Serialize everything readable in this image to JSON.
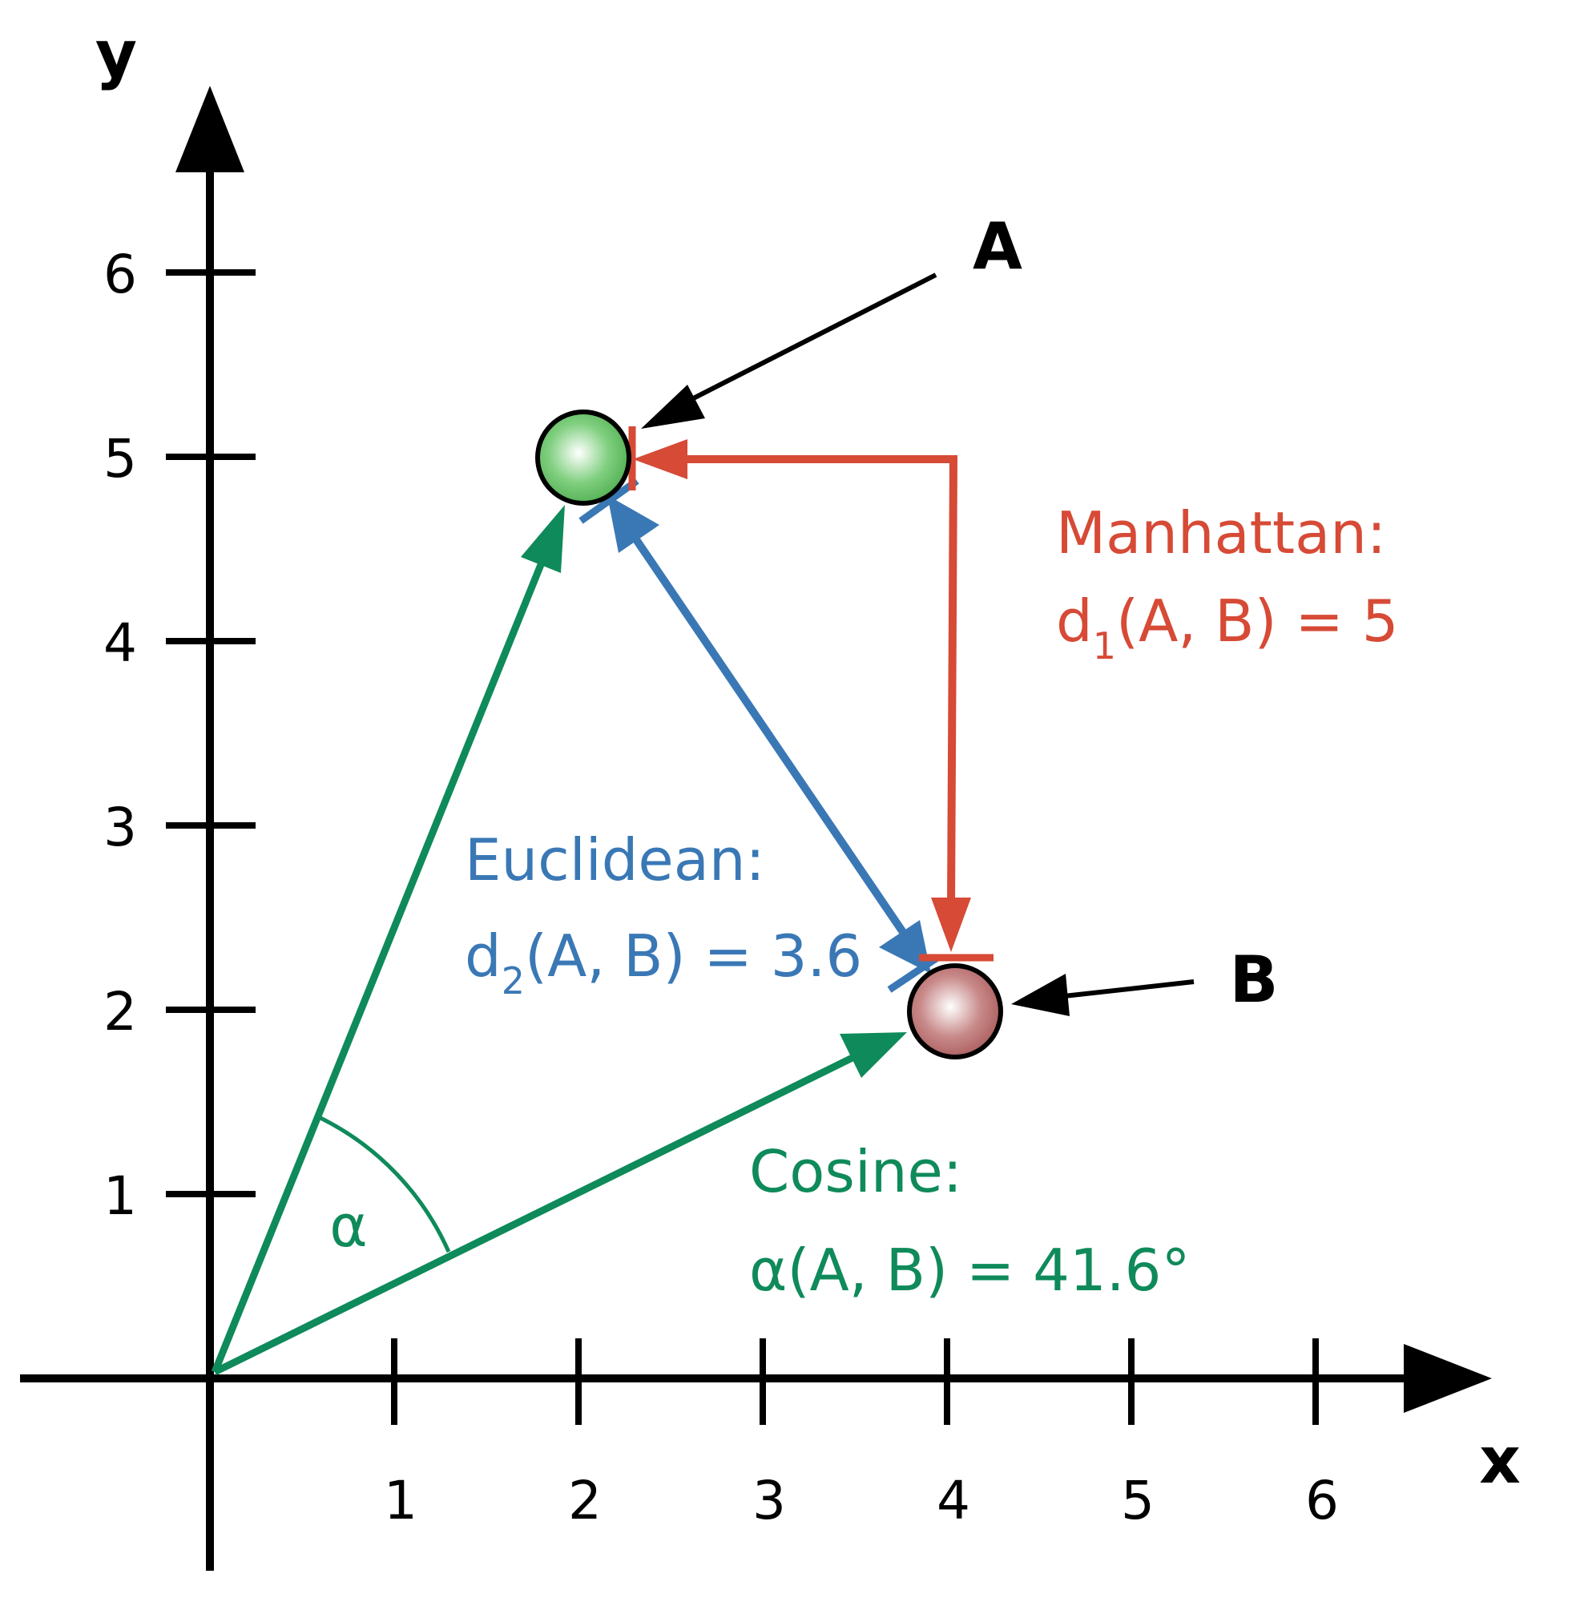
{
  "axes": {
    "x_label": "x",
    "y_label": "y",
    "x_ticks": [
      "1",
      "2",
      "3",
      "4",
      "5",
      "6"
    ],
    "y_ticks": [
      "1",
      "2",
      "3",
      "4",
      "5",
      "6"
    ]
  },
  "points": [
    {
      "name": "A",
      "x": 2,
      "y": 5,
      "color": "#5cb85c"
    },
    {
      "name": "B",
      "x": 4,
      "y": 2,
      "color": "#b86a6a"
    }
  ],
  "metrics": {
    "manhattan": {
      "title": "Manhattan:",
      "prefix": "d",
      "subscript": "1",
      "args": "(A, B) = 5",
      "color": "#d64a36"
    },
    "euclidean": {
      "title": "Euclidean:",
      "prefix": "d",
      "subscript": "2",
      "args": "(A, B) = 3.6",
      "color": "#3a78b5"
    },
    "cosine": {
      "title": "Cosine:",
      "formula": "α(A, B) = 41.6°",
      "angle_symbol": "α",
      "color": "#0f8a5a"
    }
  },
  "colors": {
    "axis": "#000000",
    "pointer": "#000000"
  }
}
